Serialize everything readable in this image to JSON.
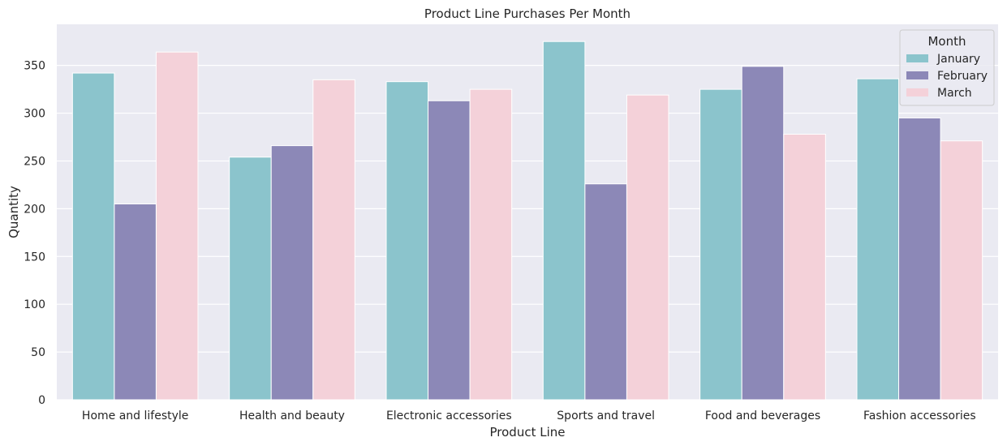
{
  "chart_data": {
    "type": "bar",
    "title": "Product Line Purchases Per Month",
    "xlabel": "Product Line",
    "ylabel": "Quantity",
    "ylim": [
      0,
      393
    ],
    "yticks": [
      0,
      50,
      100,
      150,
      200,
      250,
      300,
      350
    ],
    "grid": true,
    "legend": {
      "title": "Month",
      "placement": "top-right"
    },
    "categories": [
      "Home and lifestyle",
      "Health and beauty",
      "Electronic accessories",
      "Sports and travel",
      "Food and beverages",
      "Fashion accessories"
    ],
    "series": [
      {
        "name": "January",
        "color": "#8bc4cc",
        "values": [
          342,
          254,
          333,
          375,
          325,
          336
        ]
      },
      {
        "name": "February",
        "color": "#8c88b7",
        "values": [
          205,
          266,
          313,
          226,
          349,
          295
        ]
      },
      {
        "name": "March",
        "color": "#f4d1d9",
        "values": [
          364,
          335,
          325,
          319,
          278,
          271
        ]
      }
    ],
    "colors": {
      "plot_background": "#eaeaf2",
      "grid": "#ffffff"
    }
  }
}
